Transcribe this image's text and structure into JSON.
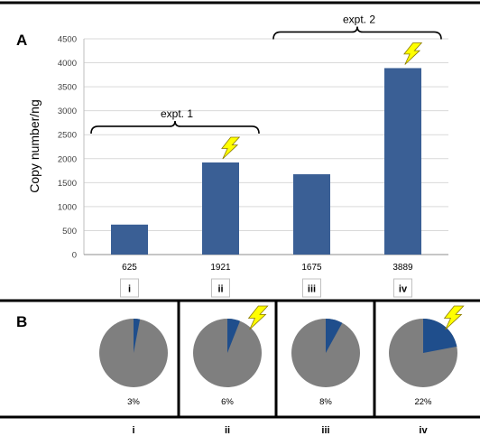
{
  "panel_a_label": "A",
  "panel_b_label": "B",
  "chart_data": [
    {
      "type": "bar",
      "ylabel": "Copy number/ng",
      "xlabel": "",
      "ylim": [
        0,
        4500
      ],
      "yticks": [
        0,
        500,
        1000,
        1500,
        2000,
        2500,
        3000,
        3500,
        4000,
        4500
      ],
      "grid": true,
      "categories": [
        "i",
        "ii",
        "iii",
        "iv"
      ],
      "values": [
        625,
        1921,
        1675,
        3889
      ],
      "value_labels": [
        "625",
        "1921",
        "1675",
        "3889"
      ],
      "bar_color": "#3a5f95",
      "bolt_on": [
        "ii",
        "iv"
      ],
      "groups": [
        {
          "label": "expt. 1",
          "members": [
            "i",
            "ii"
          ]
        },
        {
          "label": "expt. 2",
          "members": [
            "iii",
            "iv"
          ]
        }
      ]
    },
    {
      "type": "pie",
      "categories": [
        "i",
        "ii",
        "iii",
        "iv"
      ],
      "percent": [
        3,
        6,
        8,
        22
      ],
      "percent_labels": [
        "3%",
        "6%",
        "8%",
        "22%"
      ],
      "slice_color": "#1f4e8c",
      "rest_color": "#7f7f7f",
      "bolt_on": [
        "ii",
        "iv"
      ]
    }
  ],
  "colors": {
    "bolt_fill": "#ffff00",
    "bolt_stroke": "#8a7a00",
    "grid": "#d9d9d9",
    "axis_text": "#404040"
  }
}
